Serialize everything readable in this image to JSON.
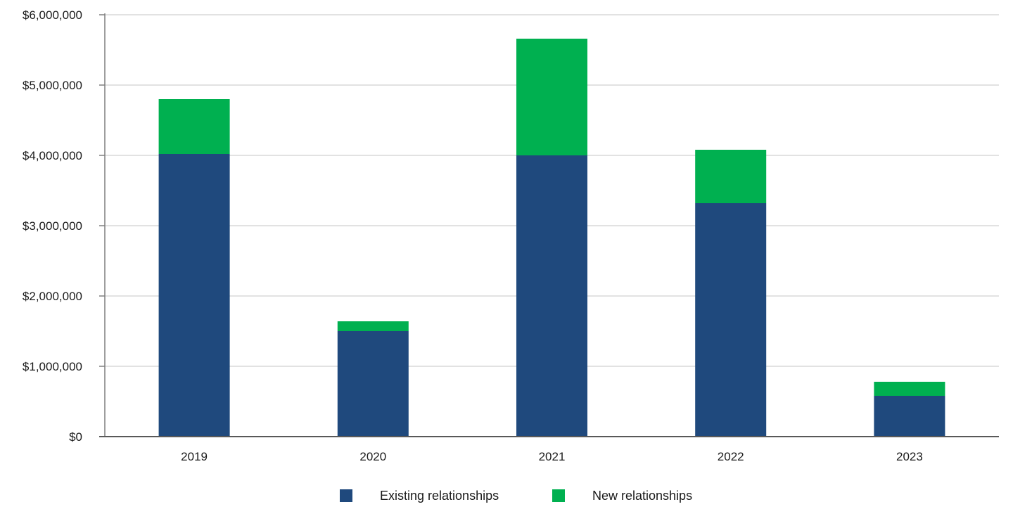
{
  "chart_data": {
    "type": "bar",
    "stacked": true,
    "categories": [
      "2019",
      "2020",
      "2021",
      "2022",
      "2023"
    ],
    "series": [
      {
        "name": "Existing relationships",
        "color": "#1f497d",
        "values": [
          4020000,
          1500000,
          4000000,
          3320000,
          580000
        ]
      },
      {
        "name": "New relationships",
        "color": "#00b050",
        "values": [
          780000,
          140000,
          1660000,
          760000,
          200000
        ]
      }
    ],
    "ylim": [
      0,
      6000000
    ],
    "yticks": [
      0,
      1000000,
      2000000,
      3000000,
      4000000,
      5000000,
      6000000
    ],
    "ytick_labels": [
      "$0",
      "$1,000,000",
      "$2,000,000",
      "$3,000,000",
      "$4,000,000",
      "$5,000,000",
      "$6,000,000"
    ],
    "grid": true,
    "legend_position": "bottom",
    "title": "",
    "xlabel": "",
    "ylabel": ""
  }
}
